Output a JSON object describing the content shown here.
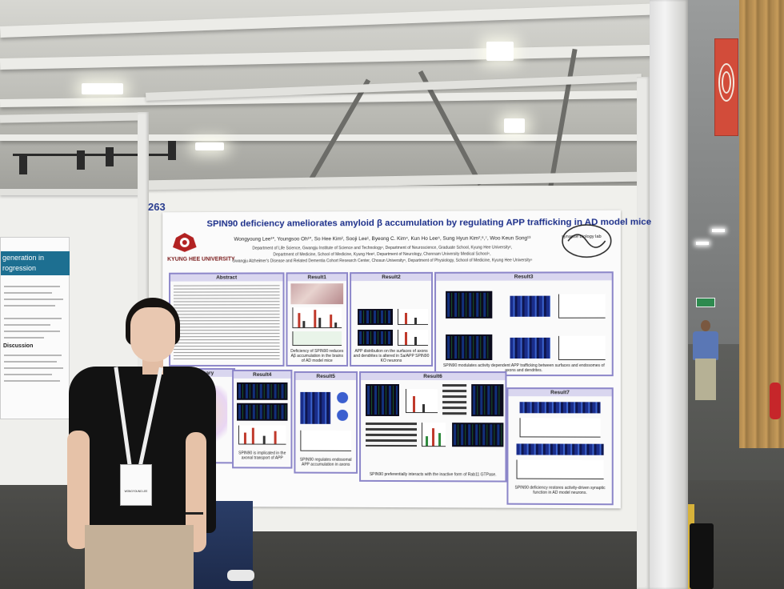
{
  "scene": {
    "description_free": true,
    "booth_number": "263"
  },
  "left_poster": {
    "title_lines": [
      "generation in",
      "rogression"
    ],
    "section": "Discussion"
  },
  "poster": {
    "title": "SPIN90 deficiency ameliorates amyloid β accumulation  by regulating APP trafficking in AD model mice",
    "university": "KYUNG HEE UNIVERSITY",
    "lab": "synapse biology lab",
    "authors": "Wongyoung Lee¹*, Youngsoo Oh¹*, So Hee Kim², Sooji Lee¹, Byeong C. Kim⁴, Kun Ho Lee⁵, Sung Hyun Kim²,⁶,⁷, Woo Keun Song¹³",
    "affiliation_1": "Department of Life Science, Gwangju Institute of Science and Technology¹, Department of Neuroscience, Graduate School, Kyung Hee University²,",
    "affiliation_2": "Department of Medicine, School of Medicine, Kyung Hee³, Department of Neurology, Chonnam University Medical School⁴,",
    "affiliation_3": "Gwangju Alzheimer's Disease and Related Dementia Cohort Research Center, Chosun University⁵, Department of Physiology, School of Medicine, Kyung Hee University⁶",
    "sections": {
      "abstract": "Abstract",
      "result1": "Result1",
      "result2": "Result2",
      "result3": "Result3",
      "summary": "Summary",
      "result4": "Result4",
      "result5": "Result5",
      "result6": "Result6",
      "result7": "Result7"
    },
    "captions": {
      "result1": "Deficiency of SPIN90 reduces Aβ accumulation in the brains of AD model mice",
      "result2": "APP distribution on the surfaces of axons and dendrites is altered in Sa/APP SPIN90 KO neurons",
      "result3": "SPIN90 modulates activity dependent APP trafficking between surfaces and endosomes of axons and dendrites.",
      "result4": "SPIN90 is implicated in the axonal transport of APP",
      "result5": "SPIN90 regulates endosomal APP accumulation in axons",
      "result6": "SPIN90 preferentially interacts with the inactive form of Rab11 GTPase.",
      "result7": "SPIN90 deficiency restores activity-driven synaptic function in AD model neurons."
    }
  },
  "badge": {
    "name": "WONGYOUNG LEE"
  },
  "colors": {
    "poster_title": "#1c2f8a",
    "section_border": "#8c86c9",
    "section_head": "#d9d6ef",
    "banner": "#d24c3a"
  }
}
